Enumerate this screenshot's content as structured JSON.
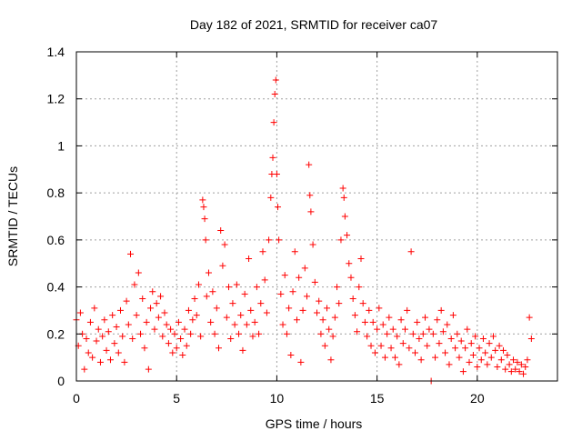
{
  "chart_data": {
    "type": "scatter",
    "title": "Day 182 of 2021, SRMTID for receiver ca07",
    "xlabel": "GPS time / hours",
    "ylabel": "SRMTID / TECUs",
    "xlim": [
      0,
      24
    ],
    "ylim": [
      0,
      1.4
    ],
    "xticks": [
      0,
      5,
      10,
      15,
      20
    ],
    "xtick_labels": [
      "0",
      "5",
      "10",
      "15",
      "20"
    ],
    "yticks": [
      0,
      0.2,
      0.4,
      0.6,
      0.8,
      1.0,
      1.2,
      1.4
    ],
    "ytick_labels": [
      "0",
      "0.2",
      "0.4",
      "0.6",
      "0.8",
      "1",
      "1.2",
      "1.4"
    ],
    "grid": true,
    "marker": "plus",
    "series_color": "#ff0000",
    "series": [
      {
        "name": "SRMTID",
        "points": [
          [
            0.0,
            0.26
          ],
          [
            0.1,
            0.15
          ],
          [
            0.2,
            0.29
          ],
          [
            0.3,
            0.2
          ],
          [
            0.4,
            0.05
          ],
          [
            0.5,
            0.18
          ],
          [
            0.6,
            0.12
          ],
          [
            0.7,
            0.25
          ],
          [
            0.8,
            0.1
          ],
          [
            0.9,
            0.31
          ],
          [
            1.0,
            0.17
          ],
          [
            1.1,
            0.22
          ],
          [
            1.2,
            0.08
          ],
          [
            1.3,
            0.19
          ],
          [
            1.4,
            0.26
          ],
          [
            1.5,
            0.13
          ],
          [
            1.6,
            0.21
          ],
          [
            1.7,
            0.09
          ],
          [
            1.8,
            0.28
          ],
          [
            1.9,
            0.16
          ],
          [
            2.0,
            0.23
          ],
          [
            2.1,
            0.12
          ],
          [
            2.2,
            0.3
          ],
          [
            2.3,
            0.19
          ],
          [
            2.4,
            0.08
          ],
          [
            2.5,
            0.34
          ],
          [
            2.6,
            0.24
          ],
          [
            2.7,
            0.54
          ],
          [
            2.8,
            0.18
          ],
          [
            2.9,
            0.41
          ],
          [
            3.0,
            0.28
          ],
          [
            3.1,
            0.46
          ],
          [
            3.2,
            0.2
          ],
          [
            3.3,
            0.35
          ],
          [
            3.4,
            0.14
          ],
          [
            3.5,
            0.25
          ],
          [
            3.6,
            0.05
          ],
          [
            3.7,
            0.31
          ],
          [
            3.8,
            0.38
          ],
          [
            3.9,
            0.22
          ],
          [
            4.0,
            0.33
          ],
          [
            4.1,
            0.27
          ],
          [
            4.2,
            0.36
          ],
          [
            4.3,
            0.19
          ],
          [
            4.4,
            0.29
          ],
          [
            4.5,
            0.24
          ],
          [
            4.6,
            0.16
          ],
          [
            4.7,
            0.22
          ],
          [
            4.8,
            0.12
          ],
          [
            4.9,
            0.2
          ],
          [
            5.0,
            0.14
          ],
          [
            5.1,
            0.25
          ],
          [
            5.2,
            0.18
          ],
          [
            5.3,
            0.11
          ],
          [
            5.4,
            0.22
          ],
          [
            5.5,
            0.15
          ],
          [
            5.6,
            0.3
          ],
          [
            5.7,
            0.2
          ],
          [
            5.8,
            0.26
          ],
          [
            5.9,
            0.35
          ],
          [
            6.0,
            0.28
          ],
          [
            6.1,
            0.41
          ],
          [
            6.2,
            0.19
          ],
          [
            6.3,
            0.77
          ],
          [
            6.35,
            0.74
          ],
          [
            6.4,
            0.69
          ],
          [
            6.45,
            0.6
          ],
          [
            6.5,
            0.36
          ],
          [
            6.6,
            0.46
          ],
          [
            6.7,
            0.25
          ],
          [
            6.8,
            0.38
          ],
          [
            6.9,
            0.2
          ],
          [
            7.0,
            0.31
          ],
          [
            7.1,
            0.14
          ],
          [
            7.2,
            0.64
          ],
          [
            7.3,
            0.49
          ],
          [
            7.4,
            0.58
          ],
          [
            7.5,
            0.27
          ],
          [
            7.6,
            0.4
          ],
          [
            7.7,
            0.18
          ],
          [
            7.8,
            0.33
          ],
          [
            7.9,
            0.24
          ],
          [
            8.0,
            0.41
          ],
          [
            8.1,
            0.2
          ],
          [
            8.2,
            0.28
          ],
          [
            8.3,
            0.13
          ],
          [
            8.4,
            0.37
          ],
          [
            8.5,
            0.24
          ],
          [
            8.6,
            0.52
          ],
          [
            8.7,
            0.3
          ],
          [
            8.8,
            0.19
          ],
          [
            8.9,
            0.25
          ],
          [
            9.0,
            0.4
          ],
          [
            9.1,
            0.2
          ],
          [
            9.2,
            0.33
          ],
          [
            9.3,
            0.55
          ],
          [
            9.4,
            0.43
          ],
          [
            9.5,
            0.29
          ],
          [
            9.6,
            0.6
          ],
          [
            9.7,
            0.78
          ],
          [
            9.75,
            0.88
          ],
          [
            9.8,
            0.95
          ],
          [
            9.85,
            1.1
          ],
          [
            9.9,
            1.22
          ],
          [
            9.95,
            1.28
          ],
          [
            10.0,
            0.88
          ],
          [
            10.05,
            0.74
          ],
          [
            10.1,
            0.6
          ],
          [
            10.2,
            0.37
          ],
          [
            10.3,
            0.24
          ],
          [
            10.4,
            0.45
          ],
          [
            10.5,
            0.2
          ],
          [
            10.6,
            0.31
          ],
          [
            10.7,
            0.11
          ],
          [
            10.8,
            0.38
          ],
          [
            10.9,
            0.55
          ],
          [
            11.0,
            0.26
          ],
          [
            11.1,
            0.44
          ],
          [
            11.2,
            0.08
          ],
          [
            11.3,
            0.3
          ],
          [
            11.4,
            0.48
          ],
          [
            11.5,
            0.36
          ],
          [
            11.6,
            0.92
          ],
          [
            11.65,
            0.79
          ],
          [
            11.7,
            0.72
          ],
          [
            11.8,
            0.58
          ],
          [
            11.9,
            0.42
          ],
          [
            12.0,
            0.29
          ],
          [
            12.1,
            0.34
          ],
          [
            12.2,
            0.2
          ],
          [
            12.3,
            0.26
          ],
          [
            12.4,
            0.15
          ],
          [
            12.5,
            0.31
          ],
          [
            12.6,
            0.22
          ],
          [
            12.7,
            0.09
          ],
          [
            12.8,
            0.19
          ],
          [
            12.9,
            0.27
          ],
          [
            13.0,
            0.4
          ],
          [
            13.1,
            0.33
          ],
          [
            13.2,
            0.6
          ],
          [
            13.3,
            0.82
          ],
          [
            13.35,
            0.78
          ],
          [
            13.4,
            0.7
          ],
          [
            13.5,
            0.62
          ],
          [
            13.6,
            0.5
          ],
          [
            13.7,
            0.44
          ],
          [
            13.8,
            0.35
          ],
          [
            13.9,
            0.28
          ],
          [
            14.0,
            0.21
          ],
          [
            14.1,
            0.4
          ],
          [
            14.2,
            0.52
          ],
          [
            14.3,
            0.33
          ],
          [
            14.4,
            0.25
          ],
          [
            14.5,
            0.19
          ],
          [
            14.6,
            0.3
          ],
          [
            14.7,
            0.15
          ],
          [
            14.8,
            0.25
          ],
          [
            14.9,
            0.12
          ],
          [
            15.0,
            0.22
          ],
          [
            15.1,
            0.31
          ],
          [
            15.2,
            0.15
          ],
          [
            15.3,
            0.24
          ],
          [
            15.4,
            0.1
          ],
          [
            15.5,
            0.2
          ],
          [
            15.6,
            0.27
          ],
          [
            15.7,
            0.14
          ],
          [
            15.8,
            0.22
          ],
          [
            15.9,
            0.1
          ],
          [
            16.0,
            0.19
          ],
          [
            16.1,
            0.07
          ],
          [
            16.2,
            0.26
          ],
          [
            16.3,
            0.16
          ],
          [
            16.4,
            0.22
          ],
          [
            16.5,
            0.3
          ],
          [
            16.6,
            0.14
          ],
          [
            16.7,
            0.55
          ],
          [
            16.8,
            0.2
          ],
          [
            16.9,
            0.12
          ],
          [
            17.0,
            0.25
          ],
          [
            17.1,
            0.18
          ],
          [
            17.2,
            0.09
          ],
          [
            17.3,
            0.2
          ],
          [
            17.4,
            0.27
          ],
          [
            17.5,
            0.15
          ],
          [
            17.6,
            0.22
          ],
          [
            17.7,
            0.0
          ],
          [
            17.8,
            0.2
          ],
          [
            17.9,
            0.1
          ],
          [
            18.0,
            0.26
          ],
          [
            18.1,
            0.16
          ],
          [
            18.2,
            0.3
          ],
          [
            18.3,
            0.21
          ],
          [
            18.4,
            0.12
          ],
          [
            18.5,
            0.24
          ],
          [
            18.6,
            0.07
          ],
          [
            18.7,
            0.18
          ],
          [
            18.8,
            0.28
          ],
          [
            18.9,
            0.14
          ],
          [
            19.0,
            0.2
          ],
          [
            19.1,
            0.1
          ],
          [
            19.2,
            0.17
          ],
          [
            19.3,
            0.04
          ],
          [
            19.4,
            0.14
          ],
          [
            19.5,
            0.22
          ],
          [
            19.6,
            0.08
          ],
          [
            19.7,
            0.16
          ],
          [
            19.8,
            0.11
          ],
          [
            19.9,
            0.19
          ],
          [
            20.0,
            0.06
          ],
          [
            20.1,
            0.14
          ],
          [
            20.2,
            0.09
          ],
          [
            20.3,
            0.18
          ],
          [
            20.4,
            0.12
          ],
          [
            20.5,
            0.07
          ],
          [
            20.6,
            0.16
          ],
          [
            20.7,
            0.1
          ],
          [
            20.8,
            0.19
          ],
          [
            20.9,
            0.13
          ],
          [
            21.0,
            0.06
          ],
          [
            21.1,
            0.15
          ],
          [
            21.2,
            0.09
          ],
          [
            21.3,
            0.13
          ],
          [
            21.4,
            0.05
          ],
          [
            21.5,
            0.11
          ],
          [
            21.6,
            0.07
          ],
          [
            21.7,
            0.04
          ],
          [
            21.8,
            0.09
          ],
          [
            21.9,
            0.05
          ],
          [
            22.0,
            0.08
          ],
          [
            22.1,
            0.04
          ],
          [
            22.2,
            0.07
          ],
          [
            22.3,
            0.03
          ],
          [
            22.4,
            0.06
          ],
          [
            22.5,
            0.09
          ],
          [
            22.6,
            0.27
          ],
          [
            22.7,
            0.18
          ]
        ]
      }
    ]
  }
}
